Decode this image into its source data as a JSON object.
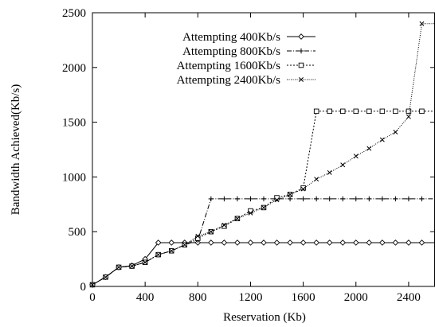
{
  "chart_data": {
    "type": "line",
    "title": "",
    "xlabel": "Reservation (Kb)",
    "ylabel": "Bandwidth Achieved(Kb/s)",
    "xlim": [
      0,
      2600
    ],
    "ylim": [
      0,
      2500
    ],
    "xticks": [
      0,
      400,
      800,
      1200,
      1600,
      2000,
      2400
    ],
    "yticks": [
      0,
      500,
      1000,
      1500,
      2000,
      2500
    ],
    "legend_position": "top-left",
    "grid": false,
    "series": [
      {
        "name": "Attempting 400Kb/s",
        "marker": "diamond",
        "dash": "none",
        "points": [
          [
            0,
            15
          ],
          [
            100,
            85
          ],
          [
            200,
            175
          ],
          [
            300,
            190
          ],
          [
            400,
            250
          ],
          [
            500,
            400
          ],
          [
            600,
            400
          ],
          [
            700,
            400
          ],
          [
            800,
            400
          ],
          [
            900,
            400
          ],
          [
            1000,
            400
          ],
          [
            1100,
            400
          ],
          [
            1200,
            400
          ],
          [
            1300,
            400
          ],
          [
            1400,
            400
          ],
          [
            1500,
            400
          ],
          [
            1600,
            400
          ],
          [
            1700,
            400
          ],
          [
            1800,
            400
          ],
          [
            1900,
            400
          ],
          [
            2000,
            400
          ],
          [
            2100,
            400
          ],
          [
            2200,
            400
          ],
          [
            2300,
            400
          ],
          [
            2400,
            400
          ],
          [
            2500,
            400
          ],
          [
            2600,
            400
          ]
        ]
      },
      {
        "name": "Attempting 800Kb/s",
        "marker": "plus",
        "dash": "6,2,1,2",
        "points": [
          [
            0,
            15
          ],
          [
            100,
            85
          ],
          [
            200,
            175
          ],
          [
            300,
            185
          ],
          [
            400,
            220
          ],
          [
            500,
            290
          ],
          [
            600,
            325
          ],
          [
            700,
            380
          ],
          [
            800,
            420
          ],
          [
            900,
            800
          ],
          [
            1000,
            800
          ],
          [
            1100,
            800
          ],
          [
            1200,
            800
          ],
          [
            1300,
            800
          ],
          [
            1400,
            800
          ],
          [
            1500,
            800
          ],
          [
            1600,
            800
          ],
          [
            1700,
            800
          ],
          [
            1800,
            800
          ],
          [
            1900,
            800
          ],
          [
            2000,
            800
          ],
          [
            2100,
            800
          ],
          [
            2200,
            800
          ],
          [
            2300,
            800
          ],
          [
            2400,
            800
          ],
          [
            2500,
            800
          ],
          [
            2600,
            800
          ]
        ]
      },
      {
        "name": "Attempting 1600Kb/s",
        "marker": "square",
        "dash": "2,2",
        "points": [
          [
            0,
            15
          ],
          [
            100,
            85
          ],
          [
            200,
            175
          ],
          [
            300,
            185
          ],
          [
            400,
            220
          ],
          [
            500,
            290
          ],
          [
            600,
            325
          ],
          [
            700,
            380
          ],
          [
            800,
            440
          ],
          [
            900,
            500
          ],
          [
            1000,
            550
          ],
          [
            1100,
            620
          ],
          [
            1200,
            690
          ],
          [
            1300,
            720
          ],
          [
            1400,
            810
          ],
          [
            1500,
            840
          ],
          [
            1600,
            900
          ],
          [
            1700,
            1600
          ],
          [
            1800,
            1600
          ],
          [
            1900,
            1600
          ],
          [
            2000,
            1600
          ],
          [
            2100,
            1600
          ],
          [
            2200,
            1600
          ],
          [
            2300,
            1600
          ],
          [
            2400,
            1600
          ],
          [
            2500,
            1600
          ],
          [
            2600,
            1600
          ]
        ]
      },
      {
        "name": "Attempting 2400Kb/s",
        "marker": "cross",
        "dash": "1,1.5",
        "points": [
          [
            0,
            15
          ],
          [
            100,
            85
          ],
          [
            200,
            175
          ],
          [
            300,
            185
          ],
          [
            400,
            220
          ],
          [
            500,
            290
          ],
          [
            600,
            325
          ],
          [
            700,
            380
          ],
          [
            800,
            460
          ],
          [
            900,
            500
          ],
          [
            1000,
            560
          ],
          [
            1100,
            620
          ],
          [
            1200,
            670
          ],
          [
            1300,
            720
          ],
          [
            1400,
            790
          ],
          [
            1500,
            840
          ],
          [
            1600,
            890
          ],
          [
            1700,
            980
          ],
          [
            1800,
            1040
          ],
          [
            1900,
            1110
          ],
          [
            2000,
            1190
          ],
          [
            2100,
            1260
          ],
          [
            2200,
            1340
          ],
          [
            2300,
            1410
          ],
          [
            2400,
            1550
          ],
          [
            2500,
            2400
          ],
          [
            2600,
            2400
          ]
        ]
      }
    ]
  }
}
